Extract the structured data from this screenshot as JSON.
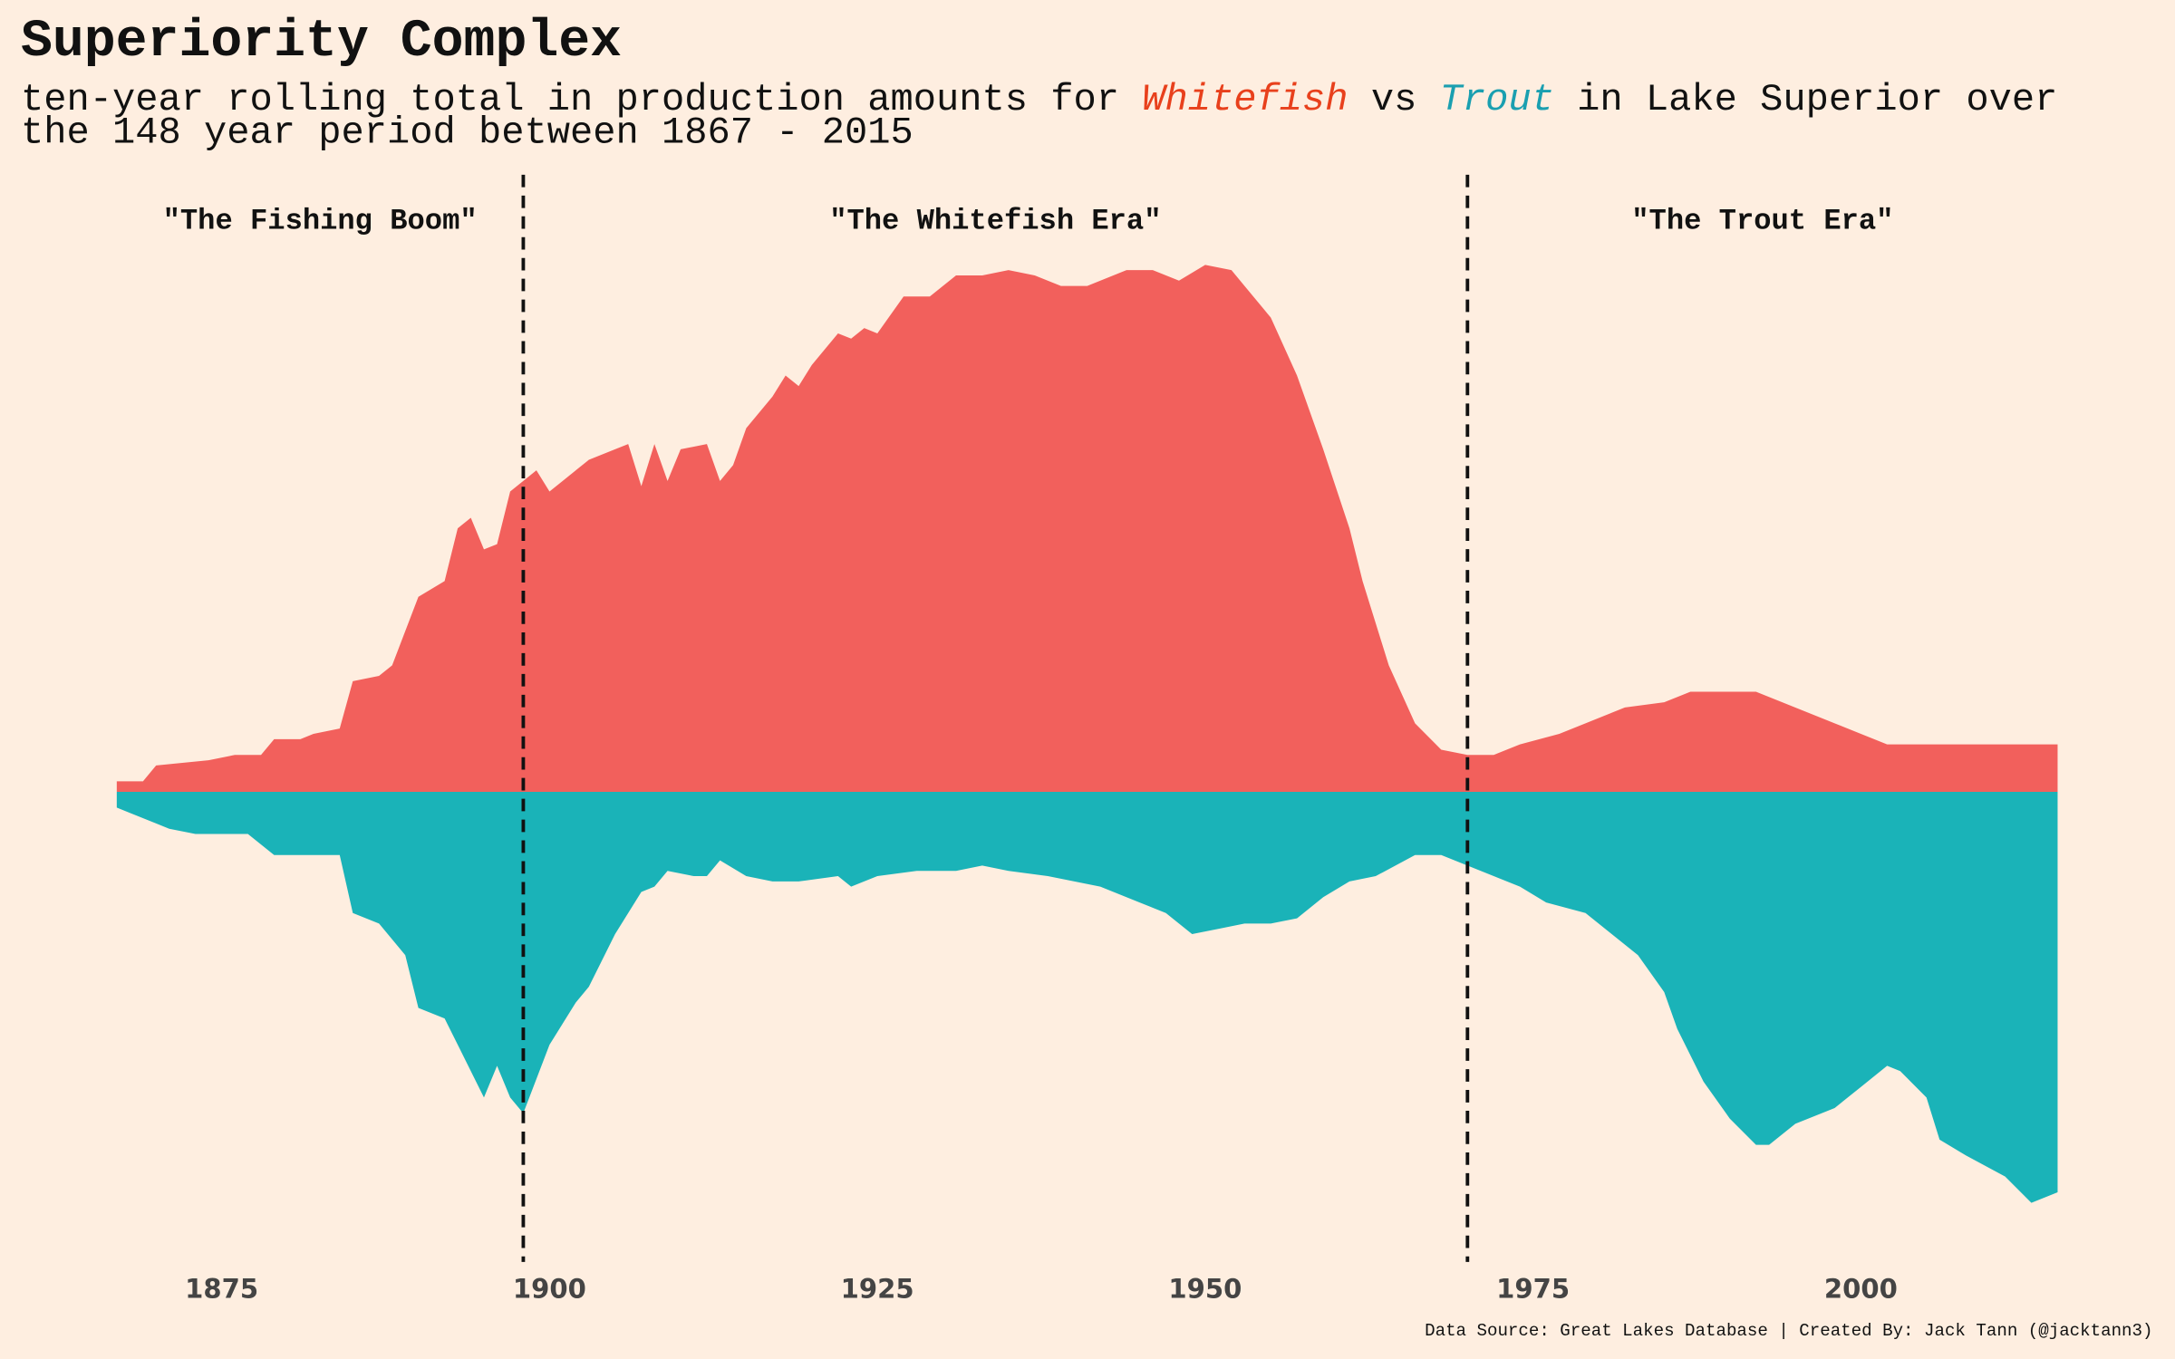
{
  "chart_data": {
    "type": "area",
    "title": "Superiority Complex",
    "subtitle": [
      "ten-year rolling total in production amounts for",
      "vs",
      "in Lake Superior over",
      "the 148 year period between 1867 - 2015"
    ],
    "source": "Data Source: Great Lakes Database | Created By: Jack Tann (@jacktann3)",
    "annotations": [
      "\"The Fishing Boom\"",
      "\"The Whitefish Era\"",
      "\"The Trout Era\""
    ],
    "vlines": [
      1898,
      1970
    ],
    "xlim": [
      1860,
      2023
    ],
    "xticks": [
      1875,
      1900,
      1925,
      1950,
      1975,
      2000
    ],
    "ylim": [
      -88,
      117
    ],
    "series": [
      {
        "name": "Whitefish",
        "color": "#f2605c",
        "label_color": "#e8401c",
        "x": [
          1867,
          1869,
          1870,
          1874,
          1876,
          1878,
          1879,
          1881,
          1882,
          1884,
          1885,
          1887,
          1888,
          1890,
          1892,
          1893,
          1894,
          1895,
          1896,
          1897,
          1899,
          1900,
          1901,
          1903,
          1905,
          1906,
          1907,
          1908,
          1909,
          1910,
          1912,
          1913,
          1914,
          1915,
          1917,
          1918,
          1919,
          1920,
          1922,
          1923,
          1924,
          1925,
          1927,
          1929,
          1931,
          1933,
          1935,
          1937,
          1939,
          1941,
          1944,
          1946,
          1948,
          1950,
          1952,
          1953,
          1955,
          1957,
          1959,
          1961,
          1962,
          1964,
          1966,
          1968,
          1970,
          1972,
          1974,
          1977,
          1979,
          1982,
          1985,
          1987,
          1989,
          1992,
          1994,
          1998,
          2000,
          2002,
          2006,
          2010,
          2012,
          2015
        ],
        "values": [
          2,
          2,
          5,
          6,
          7,
          7,
          10,
          10,
          11,
          12,
          21,
          22,
          24,
          37,
          40,
          50,
          52,
          46,
          47,
          57,
          61,
          57,
          59,
          63,
          65,
          66,
          58,
          66,
          59,
          65,
          66,
          59,
          62,
          69,
          75,
          79,
          77,
          81,
          87,
          86,
          88,
          87,
          94,
          94,
          98,
          98,
          99,
          98,
          96,
          96,
          99,
          99,
          97,
          100,
          99,
          96,
          90,
          79,
          65,
          50,
          40,
          24,
          13,
          8,
          7,
          7,
          9,
          11,
          13,
          16,
          17,
          19,
          19,
          19,
          17,
          13,
          11,
          9,
          9,
          9,
          9,
          9
        ]
      },
      {
        "name": "Trout",
        "color": "#1ab3b8",
        "label_color": "#1a9fb0",
        "x": [
          1867,
          1868,
          1870,
          1871,
          1873,
          1877,
          1879,
          1884,
          1885,
          1887,
          1889,
          1890,
          1892,
          1895,
          1896,
          1897,
          1898,
          1900,
          1901,
          1902,
          1903,
          1905,
          1907,
          1908,
          1909,
          1911,
          1912,
          1913,
          1915,
          1917,
          1919,
          1922,
          1923,
          1925,
          1928,
          1931,
          1933,
          1935,
          1938,
          1942,
          1945,
          1947,
          1949,
          1951,
          1953,
          1955,
          1957,
          1959,
          1961,
          1963,
          1966,
          1968,
          1970,
          1972,
          1974,
          1976,
          1979,
          1981,
          1983,
          1985,
          1986,
          1988,
          1990,
          1992,
          1993,
          1995,
          1998,
          2000,
          2002,
          2003,
          2005,
          2006,
          2008,
          2011,
          2013,
          2015
        ],
        "values": [
          -3,
          -4,
          -6,
          -7,
          -8,
          -8,
          -12,
          -12,
          -23,
          -25,
          -31,
          -41,
          -43,
          -58,
          -52,
          -58,
          -61,
          -48,
          -44,
          -40,
          -37,
          -27,
          -19,
          -18,
          -15,
          -16,
          -16,
          -13,
          -16,
          -17,
          -17,
          -16,
          -18,
          -16,
          -15,
          -15,
          -14,
          -15,
          -16,
          -18,
          -21,
          -23,
          -27,
          -26,
          -25,
          -25,
          -24,
          -20,
          -17,
          -16,
          -12,
          -12,
          -14,
          -16,
          -18,
          -21,
          -23,
          -27,
          -31,
          -38,
          -45,
          -55,
          -62,
          -67,
          -67,
          -63,
          -60,
          -56,
          -52,
          -53,
          -58,
          -66,
          -69,
          -73,
          -78,
          -76
        ]
      }
    ]
  }
}
